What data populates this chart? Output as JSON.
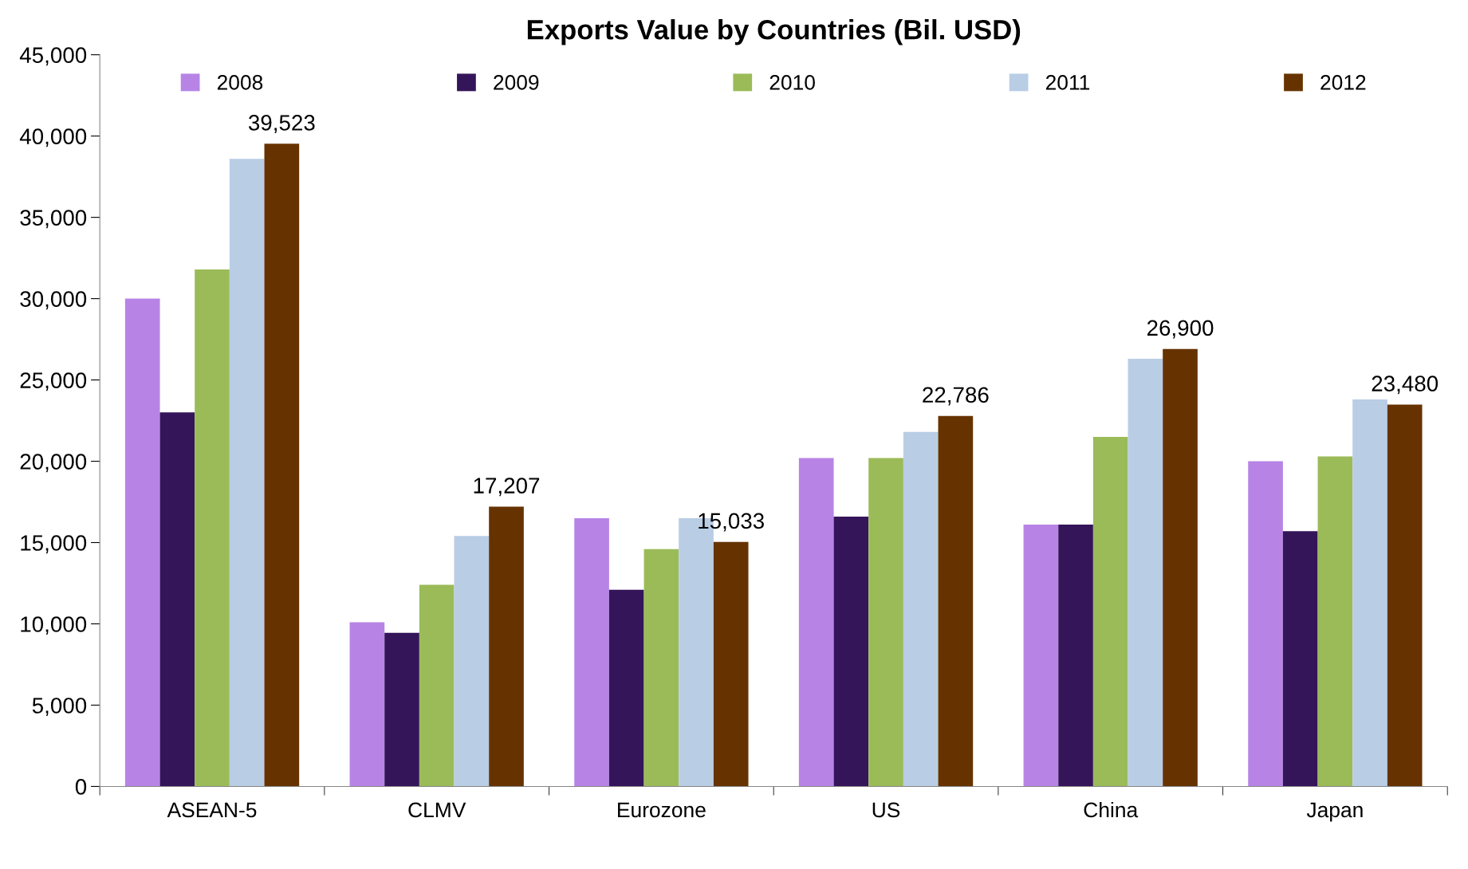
{
  "chart_data": {
    "type": "bar",
    "title": "Exports Value by Countries (Bil. USD)",
    "categories": [
      "ASEAN-5",
      "CLMV",
      "Eurozone",
      "US",
      "China",
      "Japan"
    ],
    "series": [
      {
        "name": "2008",
        "color": "#b784e6",
        "values": [
          30000,
          10100,
          16500,
          20200,
          16100,
          20000
        ]
      },
      {
        "name": "2009",
        "color": "#35155a",
        "values": [
          23000,
          9450,
          12100,
          16600,
          16100,
          15700
        ]
      },
      {
        "name": "2010",
        "color": "#9bbb59",
        "values": [
          31800,
          12400,
          14600,
          20200,
          21500,
          20300
        ]
      },
      {
        "name": "2011",
        "color": "#b9cde5",
        "values": [
          38600,
          15400,
          16500,
          21800,
          26300,
          23800
        ]
      },
      {
        "name": "2012",
        "color": "#663300",
        "values": [
          39523,
          17207,
          15033,
          22786,
          26900,
          23480
        ],
        "value_labels": [
          "39,523",
          "17,207",
          "15,033",
          "22,786",
          "26,900",
          "23,480"
        ]
      }
    ],
    "ylim": [
      0,
      45000
    ],
    "yticks": [
      {
        "value": 0,
        "label": "0"
      },
      {
        "value": 5000,
        "label": "5,000"
      },
      {
        "value": 10000,
        "label": "10,000"
      },
      {
        "value": 15000,
        "label": "15,000"
      },
      {
        "value": 20000,
        "label": "20,000"
      },
      {
        "value": 25000,
        "label": "25,000"
      },
      {
        "value": 30000,
        "label": "30,000"
      },
      {
        "value": 35000,
        "label": "35,000"
      },
      {
        "value": 40000,
        "label": "40,000"
      },
      {
        "value": 45000,
        "label": "45,000"
      }
    ],
    "grid": false,
    "legend": "top"
  }
}
